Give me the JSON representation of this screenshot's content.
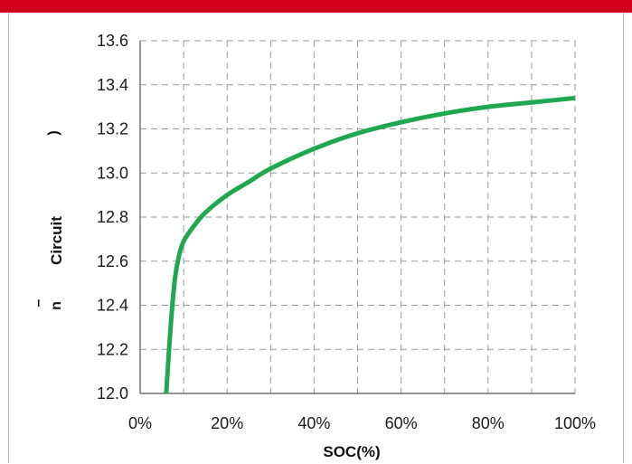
{
  "header": {
    "bar_color": "#d3001b"
  },
  "chart_data": {
    "type": "line",
    "title": "",
    "xlabel": "SOC(%)",
    "ylabel": "Circuit",
    "ylabel_fragments": [
      ")",
      "n",
      "–"
    ],
    "xlim": [
      0,
      100
    ],
    "ylim": [
      12.0,
      13.6
    ],
    "x_ticks": [
      0,
      20,
      40,
      60,
      80,
      100
    ],
    "x_tick_labels": [
      "0%",
      "20%",
      "40%",
      "60%",
      "80%",
      "100%"
    ],
    "y_ticks": [
      12.0,
      12.2,
      12.4,
      12.6,
      12.8,
      13.0,
      13.2,
      13.4,
      13.6
    ],
    "y_tick_labels": [
      "12.0",
      "12.2",
      "12.4",
      "12.6",
      "12.8",
      "13.0",
      "13.2",
      "13.4",
      "13.6"
    ],
    "grid": true,
    "grid_x_step": 10,
    "grid_y_step": 0.2,
    "legend": "none",
    "series": [
      {
        "color": "#1fa84f",
        "x": [
          6,
          7,
          8,
          9,
          10,
          12,
          15,
          20,
          25,
          30,
          40,
          50,
          60,
          70,
          80,
          90,
          100
        ],
        "y": [
          12.0,
          12.3,
          12.52,
          12.63,
          12.69,
          12.75,
          12.82,
          12.9,
          12.96,
          13.02,
          13.11,
          13.18,
          13.23,
          13.27,
          13.3,
          13.32,
          13.34
        ]
      }
    ]
  }
}
